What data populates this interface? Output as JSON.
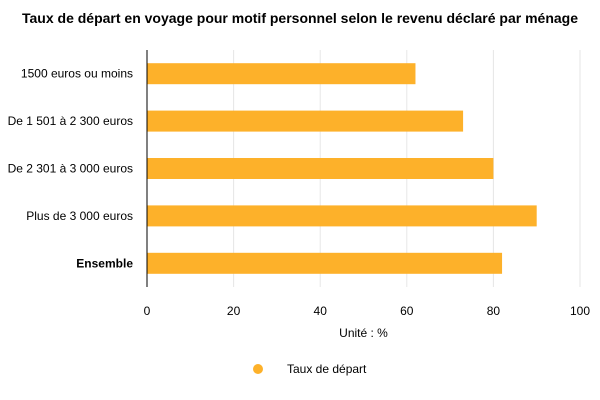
{
  "chart_data": {
    "type": "bar",
    "orientation": "horizontal",
    "title": "Taux de départ en voyage pour motif personnel selon le revenu déclaré par ménage",
    "categories": [
      "1500 euros ou moins",
      "De 1 501 à 2 300 euros",
      "De 2 301 à 3 000 euros",
      "Plus de 3 000 euros",
      "Ensemble"
    ],
    "bold_categories": [
      "Ensemble"
    ],
    "series": [
      {
        "name": "Taux de départ",
        "values": [
          62,
          73,
          80,
          90,
          82
        ],
        "color": "#FDB12A"
      }
    ],
    "xlabel": "Unité : %",
    "ylabel": "",
    "xlim": [
      0,
      100
    ],
    "xticks": [
      0,
      20,
      40,
      60,
      80,
      100
    ],
    "grid": true,
    "legend_position": "bottom"
  }
}
